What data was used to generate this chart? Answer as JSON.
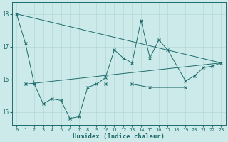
{
  "xlabel": "Humidex (Indice chaleur)",
  "background_color": "#cdeaea",
  "grid_color": "#b5d8d8",
  "line_color": "#1e6b6b",
  "xlim": [
    -0.5,
    23.5
  ],
  "ylim": [
    14.6,
    18.35
  ],
  "yticks": [
    15,
    16,
    17,
    18
  ],
  "xticks": [
    0,
    1,
    2,
    3,
    4,
    5,
    6,
    7,
    8,
    9,
    10,
    11,
    12,
    13,
    14,
    15,
    16,
    17,
    18,
    19,
    20,
    21,
    22,
    23
  ],
  "series_main": {
    "x": [
      0,
      1,
      2,
      3,
      4,
      5,
      6,
      7,
      8,
      9,
      10,
      11,
      12,
      13,
      14,
      15,
      16,
      17,
      19,
      20,
      21,
      22,
      23
    ],
    "y": [
      18.0,
      17.1,
      15.85,
      15.25,
      15.4,
      15.35,
      14.8,
      14.85,
      15.75,
      15.85,
      16.05,
      16.9,
      16.65,
      16.5,
      17.8,
      16.65,
      17.2,
      16.9,
      15.95,
      16.1,
      16.35,
      16.4,
      16.5
    ]
  },
  "series_flat": {
    "x": [
      1,
      10,
      13,
      15,
      19
    ],
    "y": [
      15.85,
      15.85,
      15.85,
      15.75,
      15.75
    ]
  },
  "series_trend_up": {
    "x": [
      1,
      23
    ],
    "y": [
      15.85,
      16.5
    ]
  },
  "series_trend_down": {
    "x": [
      0,
      23
    ],
    "y": [
      18.0,
      16.5
    ]
  },
  "series_lower": {
    "x": [
      2,
      3,
      4,
      5,
      6,
      7,
      8,
      9,
      10
    ],
    "y": [
      15.85,
      15.25,
      15.4,
      15.35,
      14.8,
      14.85,
      15.75,
      15.85,
      16.05
    ]
  }
}
